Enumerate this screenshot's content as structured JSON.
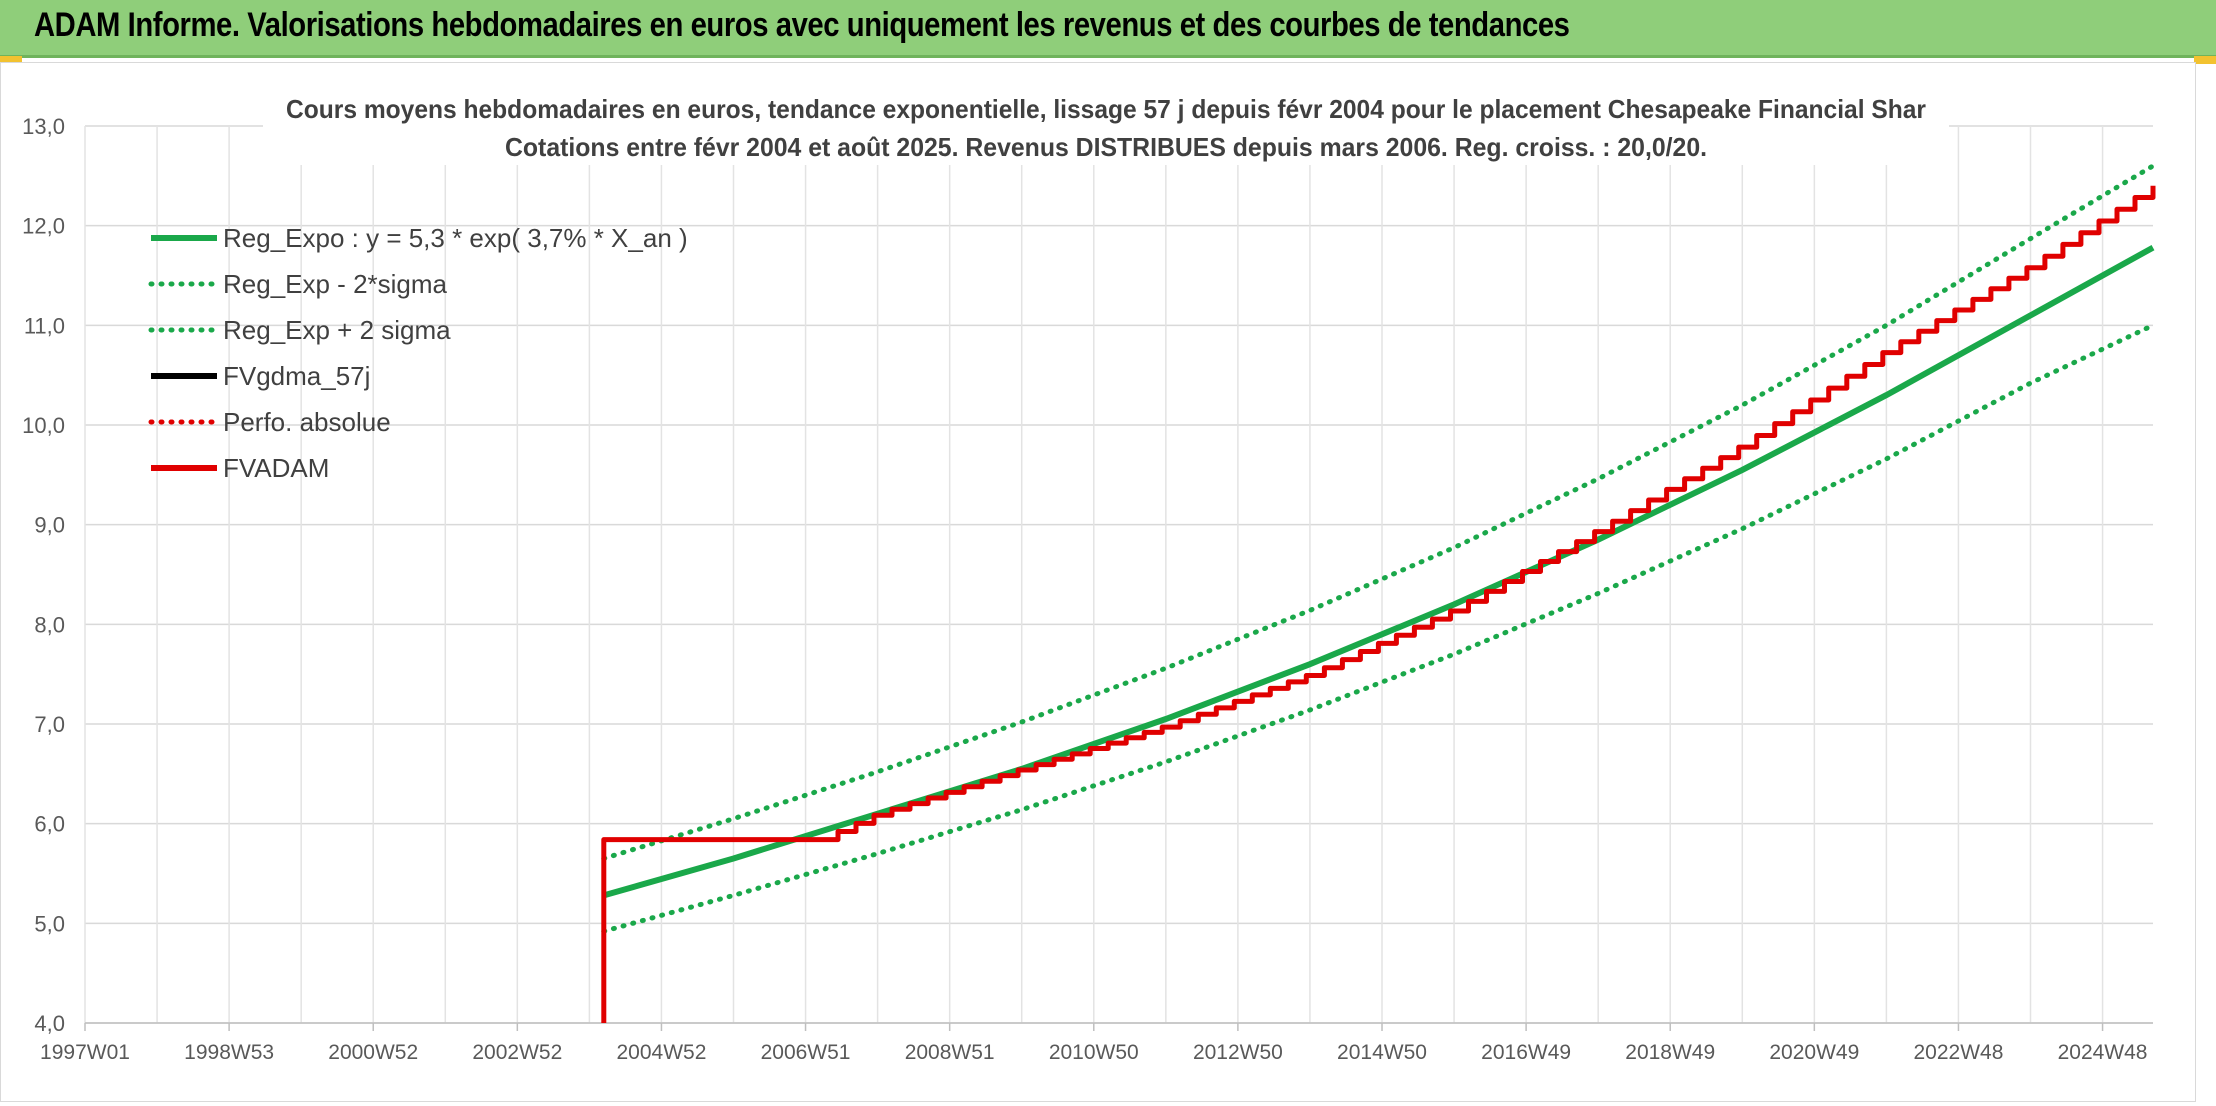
{
  "banner": {
    "title": "ADAM Informe. Valorisations hebdomadaires en euros avec uniquement les revenus et des courbes de tendances",
    "background": "#8fce7a"
  },
  "chart_data": {
    "type": "line",
    "title": "Cours moyens hebdomadaires en euros, tendance exponentielle, lissage 57 j depuis févr 2004 pour le placement Chesapeake Financial Shar",
    "subtitle": "Cotations entre févr 2004 et août 2025. Revenus DISTRIBUES depuis mars 2006. Reg. croiss. : 20,0/20.",
    "xlabel": "",
    "ylabel": "",
    "ylim": [
      4.0,
      13.0
    ],
    "xlim": [
      1997.0,
      2025.7
    ],
    "y_ticks": [
      "4,0",
      "5,0",
      "6,0",
      "7,0",
      "8,0",
      "9,0",
      "10,0",
      "11,0",
      "12,0",
      "13,0"
    ],
    "x_ticks": [
      {
        "label": "1997W01",
        "x": 1997.0
      },
      {
        "label": "1998W53",
        "x": 1999.0
      },
      {
        "label": "2000W52",
        "x": 2001.0
      },
      {
        "label": "2002W52",
        "x": 2003.0
      },
      {
        "label": "2004W52",
        "x": 2005.0
      },
      {
        "label": "2006W51",
        "x": 2007.0
      },
      {
        "label": "2008W51",
        "x": 2009.0
      },
      {
        "label": "2010W50",
        "x": 2011.0
      },
      {
        "label": "2012W50",
        "x": 2013.0
      },
      {
        "label": "2014W50",
        "x": 2015.0
      },
      {
        "label": "2016W49",
        "x": 2017.0
      },
      {
        "label": "2018W49",
        "x": 2019.0
      },
      {
        "label": "2020W49",
        "x": 2021.0
      },
      {
        "label": "2022W48",
        "x": 2023.0
      },
      {
        "label": "2024W48",
        "x": 2025.0
      }
    ],
    "grid": true,
    "legend_position": "top-left",
    "series": [
      {
        "name": "Reg_Expo : y = 5,3 * exp( 3,7% *  X_an )",
        "color": "#1aa84a",
        "style": "solid",
        "x": [
          2004.2,
          2006.0,
          2008.0,
          2010.0,
          2012.0,
          2014.0,
          2016.0,
          2018.0,
          2020.0,
          2022.0,
          2024.0,
          2025.7
        ],
        "y": [
          5.28,
          5.65,
          6.1,
          6.55,
          7.05,
          7.6,
          8.2,
          8.85,
          9.55,
          10.3,
          11.1,
          11.78
        ]
      },
      {
        "name": "Reg_Exp - 2*sigma",
        "color": "#1aa84a",
        "style": "dotted",
        "x": [
          2004.2,
          2006.0,
          2008.0,
          2010.0,
          2012.0,
          2014.0,
          2016.0,
          2018.0,
          2020.0,
          2022.0,
          2024.0,
          2025.7
        ],
        "y": [
          4.92,
          5.28,
          5.7,
          6.14,
          6.62,
          7.14,
          7.7,
          8.31,
          8.96,
          9.66,
          10.42,
          11.0
        ]
      },
      {
        "name": "Reg_Exp + 2 sigma",
        "color": "#1aa84a",
        "style": "dotted",
        "x": [
          2004.2,
          2006.0,
          2008.0,
          2010.0,
          2012.0,
          2014.0,
          2016.0,
          2018.0,
          2020.0,
          2022.0,
          2024.0,
          2025.7
        ],
        "y": [
          5.65,
          6.05,
          6.52,
          7.02,
          7.56,
          8.14,
          8.77,
          9.46,
          10.2,
          11.0,
          11.87,
          12.6
        ]
      },
      {
        "name": "FVgdma_57j",
        "color": "#000000",
        "style": "solid",
        "x": [],
        "y": []
      },
      {
        "name": "Perfo. absolue",
        "color": "#e00000",
        "style": "dotted",
        "x": [],
        "y": []
      },
      {
        "name": "FVADAM",
        "color": "#e00000",
        "style": "solid",
        "x": [
          2004.2,
          2004.2,
          2007.2,
          2008.0,
          2010.0,
          2012.0,
          2014.0,
          2016.0,
          2018.0,
          2020.0,
          2022.0,
          2024.0,
          2025.7
        ],
        "y": [
          4.0,
          5.84,
          5.84,
          6.1,
          6.55,
          6.98,
          7.5,
          8.15,
          8.95,
          9.8,
          10.75,
          11.6,
          12.4
        ]
      }
    ]
  }
}
